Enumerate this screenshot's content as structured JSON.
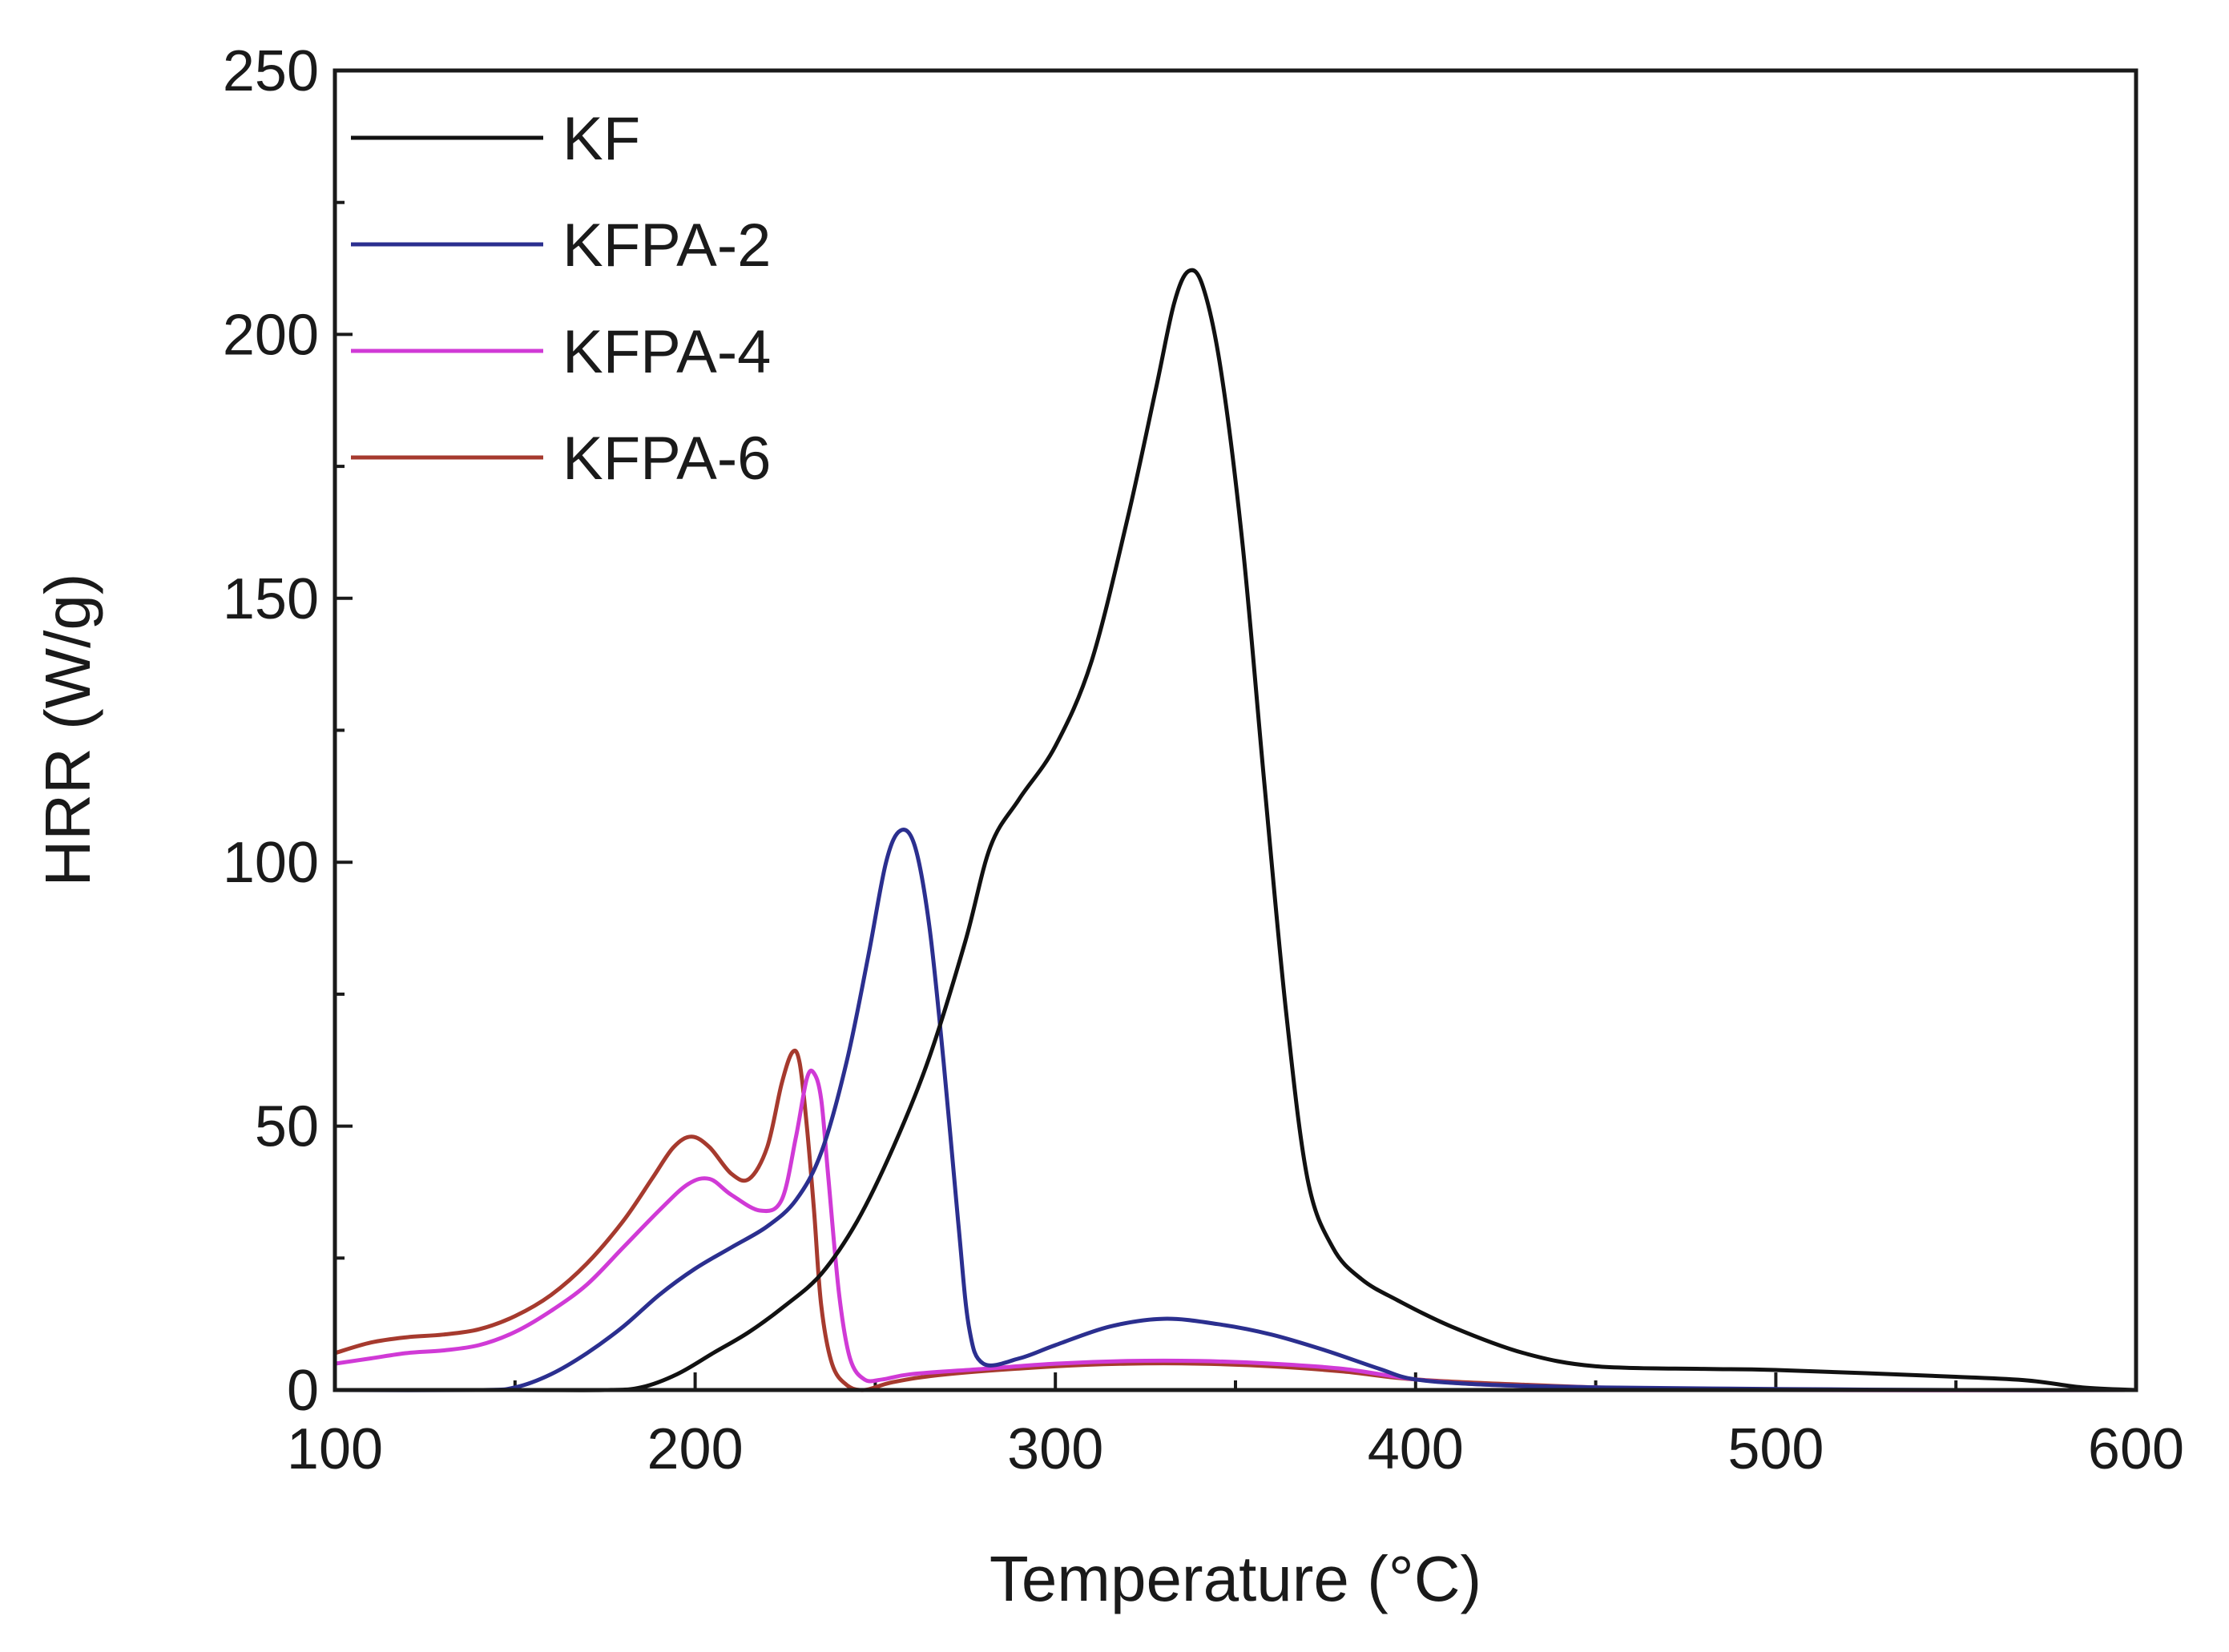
{
  "chart_data": {
    "type": "line",
    "title": "",
    "xlabel": "Temperature (°C)",
    "ylabel": "HRR (W/g)",
    "xlim": [
      100,
      600
    ],
    "ylim": [
      0,
      250
    ],
    "x_ticks": [
      100,
      200,
      300,
      400,
      500,
      600
    ],
    "y_ticks": [
      0,
      50,
      100,
      150,
      200,
      250
    ],
    "x_minor_step": 50,
    "y_minor_step": 25,
    "legend_position": "top-left",
    "series": [
      {
        "name": "KF",
        "color": "#111111",
        "points": [
          [
            100,
            0
          ],
          [
            150,
            0
          ],
          [
            175,
            0
          ],
          [
            185,
            0.5
          ],
          [
            195,
            3
          ],
          [
            205,
            7
          ],
          [
            215,
            11
          ],
          [
            225,
            16
          ],
          [
            235,
            22
          ],
          [
            245,
            32
          ],
          [
            255,
            46
          ],
          [
            265,
            63
          ],
          [
            275,
            85
          ],
          [
            282,
            103
          ],
          [
            290,
            112
          ],
          [
            300,
            122
          ],
          [
            310,
            138
          ],
          [
            320,
            165
          ],
          [
            328,
            190
          ],
          [
            333,
            206
          ],
          [
            337,
            212
          ],
          [
            341,
            209
          ],
          [
            346,
            193
          ],
          [
            352,
            160
          ],
          [
            358,
            115
          ],
          [
            364,
            72
          ],
          [
            370,
            40
          ],
          [
            377,
            27
          ],
          [
            385,
            21
          ],
          [
            395,
            17
          ],
          [
            410,
            12
          ],
          [
            430,
            7
          ],
          [
            450,
            4.5
          ],
          [
            480,
            4
          ],
          [
            500,
            3.8
          ],
          [
            550,
            2.5
          ],
          [
            570,
            1.8
          ],
          [
            585,
            0.5
          ],
          [
            600,
            0
          ]
        ]
      },
      {
        "name": "KFPA-2",
        "color": "#2b2f8f",
        "points": [
          [
            100,
            0
          ],
          [
            140,
            0
          ],
          [
            150,
            0.5
          ],
          [
            160,
            3
          ],
          [
            170,
            7
          ],
          [
            180,
            12
          ],
          [
            190,
            18
          ],
          [
            200,
            23
          ],
          [
            210,
            27
          ],
          [
            220,
            31
          ],
          [
            228,
            36
          ],
          [
            235,
            45
          ],
          [
            242,
            62
          ],
          [
            248,
            82
          ],
          [
            253,
            100
          ],
          [
            257,
            106
          ],
          [
            261,
            103
          ],
          [
            265,
            88
          ],
          [
            269,
            62
          ],
          [
            273,
            32
          ],
          [
            276,
            12
          ],
          [
            280,
            5
          ],
          [
            290,
            6
          ],
          [
            300,
            8.5
          ],
          [
            315,
            12
          ],
          [
            330,
            13.5
          ],
          [
            345,
            12.5
          ],
          [
            360,
            10.5
          ],
          [
            375,
            7.5
          ],
          [
            390,
            4
          ],
          [
            400,
            2
          ],
          [
            420,
            1
          ],
          [
            450,
            0.5
          ],
          [
            500,
            0.2
          ],
          [
            550,
            0
          ],
          [
            600,
            0
          ]
        ]
      },
      {
        "name": "KFPA-4",
        "color": "#d03ad6",
        "points": [
          [
            100,
            5
          ],
          [
            110,
            6
          ],
          [
            120,
            7
          ],
          [
            130,
            7.5
          ],
          [
            140,
            8.5
          ],
          [
            150,
            11
          ],
          [
            160,
            15
          ],
          [
            170,
            20
          ],
          [
            180,
            27
          ],
          [
            190,
            34
          ],
          [
            198,
            39
          ],
          [
            204,
            40
          ],
          [
            210,
            37
          ],
          [
            218,
            34
          ],
          [
            224,
            36
          ],
          [
            228,
            48
          ],
          [
            231,
            59
          ],
          [
            233,
            60
          ],
          [
            235,
            55
          ],
          [
            237,
            40
          ],
          [
            240,
            18
          ],
          [
            243,
            6
          ],
          [
            247,
            2
          ],
          [
            252,
            2
          ],
          [
            260,
            3
          ],
          [
            280,
            4
          ],
          [
            300,
            5
          ],
          [
            320,
            5.5
          ],
          [
            340,
            5.5
          ],
          [
            360,
            5
          ],
          [
            380,
            4
          ],
          [
            400,
            2
          ],
          [
            420,
            1
          ],
          [
            450,
            0.5
          ],
          [
            500,
            0
          ],
          [
            600,
            0
          ]
        ]
      },
      {
        "name": "KFPA-6",
        "color": "#a63a2e",
        "points": [
          [
            100,
            7
          ],
          [
            110,
            9
          ],
          [
            120,
            10
          ],
          [
            130,
            10.5
          ],
          [
            140,
            11.5
          ],
          [
            150,
            14
          ],
          [
            160,
            18
          ],
          [
            170,
            24
          ],
          [
            180,
            32
          ],
          [
            188,
            40
          ],
          [
            194,
            46
          ],
          [
            199,
            48
          ],
          [
            204,
            46
          ],
          [
            210,
            41
          ],
          [
            215,
            40
          ],
          [
            220,
            46
          ],
          [
            224,
            58
          ],
          [
            227,
            64
          ],
          [
            229,
            62
          ],
          [
            231,
            50
          ],
          [
            233,
            34
          ],
          [
            235,
            16
          ],
          [
            238,
            5
          ],
          [
            242,
            1
          ],
          [
            247,
            0
          ],
          [
            255,
            1.5
          ],
          [
            270,
            3
          ],
          [
            300,
            4.5
          ],
          [
            320,
            5
          ],
          [
            340,
            5
          ],
          [
            360,
            4.5
          ],
          [
            380,
            3.5
          ],
          [
            400,
            2
          ],
          [
            430,
            1
          ],
          [
            460,
            0.3
          ],
          [
            500,
            0
          ],
          [
            600,
            0
          ]
        ]
      }
    ]
  }
}
